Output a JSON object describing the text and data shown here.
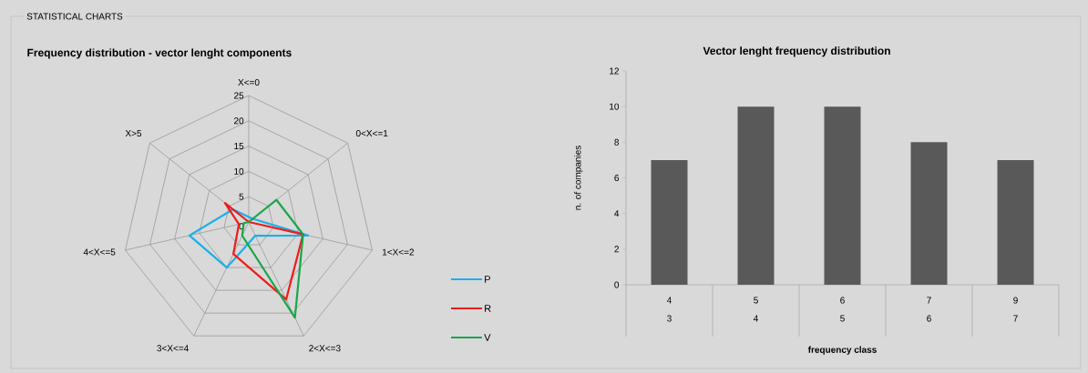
{
  "chart_data": [
    {
      "type": "radar",
      "title": "Frequency distribution - vector lenght components",
      "annotations": [
        "STATISTICAL CHARTS"
      ],
      "categories": [
        "X<=0",
        "0<X<=1",
        "1<X<=2",
        "2<X<=3",
        "3<X<=4",
        "4<X<=5",
        "X>5"
      ],
      "series": [
        {
          "name": "P",
          "color": "#1ab0e8",
          "values": [
            1,
            1,
            12,
            3,
            10,
            12,
            4
          ]
        },
        {
          "name": "R",
          "color": "#ee1c1c",
          "values": [
            0,
            0,
            11,
            17,
            7,
            2,
            6
          ]
        },
        {
          "name": "V",
          "color": "#1aa64a",
          "values": [
            0,
            7,
            11,
            21,
            3,
            1,
            0
          ]
        }
      ],
      "ylim": [
        0,
        25
      ],
      "yticks": [
        0,
        5,
        10,
        15,
        20,
        25
      ],
      "grid": true,
      "legend": "bottom right"
    },
    {
      "type": "bar",
      "title": "Vector lenght frequency distribution",
      "xlabel": "frequency class",
      "ylabel": "n. of companies",
      "categories": [
        "4",
        "5",
        "6",
        "7",
        "9"
      ],
      "values": [
        7,
        10,
        10,
        8,
        7
      ],
      "color": "#595959",
      "annotations": [
        "3",
        "4",
        "5",
        "6",
        "7"
      ],
      "ylim": [
        0,
        12
      ],
      "yticks": [
        0,
        2,
        4,
        6,
        8,
        10,
        12
      ]
    }
  ]
}
